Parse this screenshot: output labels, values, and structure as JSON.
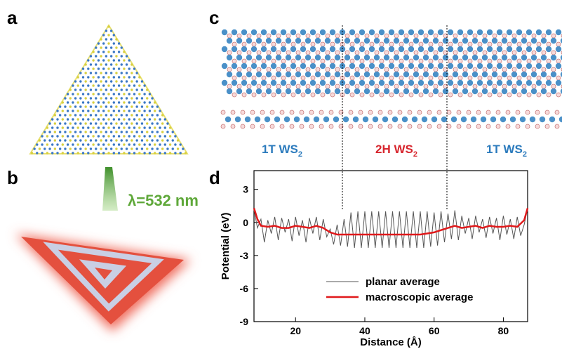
{
  "panel_labels": [
    "a",
    "b",
    "c",
    "d"
  ],
  "laser_label": "λ=532 nm",
  "region_labels": [
    {
      "text": "1T WS",
      "subscript": "2",
      "color": "#2c7bbd"
    },
    {
      "text": "2H WS",
      "subscript": "2",
      "color": "#d7262e"
    },
    {
      "text": "1T WS",
      "subscript": "2",
      "color": "#2c7bbd"
    }
  ],
  "chart_data": {
    "type": "line",
    "xlabel": "Distance (Å)",
    "ylabel": "Potential (eV)",
    "xlim": [
      8,
      87
    ],
    "ylim": [
      -9,
      4.7
    ],
    "xticks": [
      20,
      40,
      60,
      80
    ],
    "yticks": [
      3,
      0,
      -3,
      -6,
      -9
    ],
    "legend": "lower center",
    "series": [
      {
        "name": "planar average",
        "color": "#555555",
        "width": 1,
        "x": [
          8,
          9,
          10,
          11,
          12,
          13,
          14,
          15,
          16,
          17,
          18,
          19,
          20,
          21,
          22,
          23,
          24,
          25,
          26,
          27,
          28,
          29,
          30,
          31,
          32,
          33,
          34,
          35,
          36,
          37,
          38,
          39,
          40,
          41,
          42,
          43,
          44,
          45,
          46,
          47,
          48,
          49,
          50,
          51,
          52,
          53,
          54,
          55,
          56,
          57,
          58,
          59,
          60,
          61,
          62,
          63,
          64,
          65,
          66,
          67,
          68,
          69,
          70,
          71,
          72,
          73,
          74,
          75,
          76,
          77,
          78,
          79,
          80,
          81,
          82,
          83,
          84,
          85,
          86,
          87
        ],
        "values": [
          1.2,
          -0.5,
          0.3,
          -1.8,
          0.2,
          -1.0,
          0.5,
          -1.6,
          0.4,
          -0.9,
          0.3,
          -1.7,
          0.5,
          -1.2,
          0.2,
          -1.8,
          0.4,
          -1.0,
          0.5,
          -1.6,
          0.3,
          -1.3,
          -0.6,
          -2.0,
          -0.2,
          -2.1,
          0.3,
          -2.2,
          0.9,
          -2.3,
          1.0,
          -2.3,
          1.0,
          -2.3,
          1.0,
          -2.3,
          1.0,
          -2.3,
          1.0,
          -2.3,
          1.0,
          -2.3,
          1.0,
          -2.3,
          1.0,
          -2.3,
          1.0,
          -2.3,
          1.0,
          -2.3,
          1.0,
          -2.2,
          0.9,
          -2.1,
          1.0,
          -1.8,
          0.8,
          -1.5,
          1.1,
          -1.6,
          0.6,
          -1.0,
          0.4,
          -1.5,
          0.6,
          -0.9,
          0.3,
          -1.4,
          0.5,
          -1.0,
          0.4,
          -1.6,
          0.6,
          -1.1,
          0.3,
          -1.5,
          0.5,
          -1.2,
          -0.2,
          1.3
        ]
      },
      {
        "name": "macroscopic average",
        "color": "#e0191b",
        "width": 2.5,
        "x": [
          8,
          9,
          10,
          12,
          14,
          16,
          18,
          20,
          22,
          24,
          26,
          28,
          30,
          32,
          34,
          36,
          38,
          40,
          42,
          44,
          46,
          48,
          50,
          52,
          54,
          56,
          58,
          60,
          62,
          64,
          66,
          68,
          70,
          72,
          74,
          76,
          78,
          80,
          82,
          84,
          86,
          87
        ],
        "values": [
          1.3,
          0.3,
          -0.3,
          -0.4,
          -0.3,
          -0.5,
          -0.5,
          -0.3,
          -0.4,
          -0.5,
          -0.3,
          -0.5,
          -0.9,
          -1.1,
          -1.1,
          -1.1,
          -1.1,
          -1.1,
          -1.1,
          -1.1,
          -1.1,
          -1.1,
          -1.1,
          -1.1,
          -1.1,
          -1.1,
          -1.0,
          -0.9,
          -0.7,
          -0.5,
          -0.3,
          -0.5,
          -0.4,
          -0.3,
          -0.5,
          -0.3,
          -0.4,
          -0.4,
          -0.3,
          -0.4,
          0.2,
          1.3
        ]
      }
    ]
  }
}
